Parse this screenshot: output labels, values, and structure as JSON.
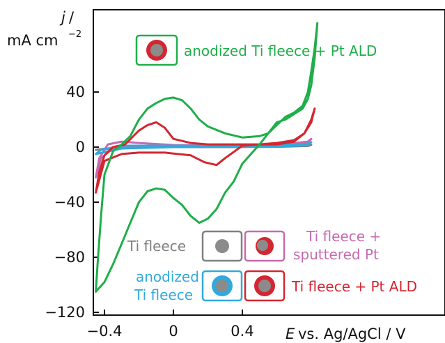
{
  "colors": {
    "ti_fleece": "#808080",
    "sputtered": "#c66aaf",
    "anodized": "#31a9dd",
    "pt_ald_red": "#d42630",
    "anodized_pt_green": "#1fae4a",
    "axis": "#111111"
  },
  "chart_data": {
    "type": "line",
    "title": "",
    "xlabel_italic": "E",
    "xlabel_rest": "vs. Ag/AgCl  /  V",
    "ylabel_italic": "j",
    "ylabel_slash": " /",
    "ylabel_unit_main": "mA cm",
    "ylabel_unit_exp": "−2",
    "xlim": [
      -0.5,
      0.85
    ],
    "ylim": [
      -120,
      85
    ],
    "xticks": [
      -0.4,
      0,
      0.4
    ],
    "xtick_labels": [
      "−0.4",
      "0",
      "0.4"
    ],
    "yticks": [
      -120,
      -80,
      -40,
      0,
      40
    ],
    "ytick_labels": [
      "−120",
      "−80",
      "−40",
      "0",
      "40"
    ],
    "grid": false,
    "series": [
      {
        "name": "Ti fleece",
        "color_key": "ti_fleece",
        "points": [
          [
            -0.45,
            -2
          ],
          [
            -0.4,
            -1.2
          ],
          [
            -0.3,
            -0.5
          ],
          [
            0,
            0
          ],
          [
            0.4,
            0.3
          ],
          [
            0.6,
            0.6
          ],
          [
            0.78,
            1.2
          ],
          [
            0.8,
            1.6
          ],
          [
            0.78,
            0.8
          ],
          [
            0.6,
            0.2
          ],
          [
            0.3,
            0
          ],
          [
            0,
            0
          ],
          [
            -0.3,
            -0.6
          ],
          [
            -0.45,
            -2
          ]
        ]
      },
      {
        "name": "Ti fleece + sputtered Pt",
        "color_key": "sputtered",
        "points": [
          [
            -0.45,
            -22
          ],
          [
            -0.43,
            -8
          ],
          [
            -0.38,
            2
          ],
          [
            -0.3,
            4
          ],
          [
            -0.2,
            3
          ],
          [
            0,
            1.5
          ],
          [
            0.3,
            1
          ],
          [
            0.6,
            1.5
          ],
          [
            0.78,
            4
          ],
          [
            0.8,
            6
          ],
          [
            0.78,
            3
          ],
          [
            0.6,
            0.5
          ],
          [
            0.3,
            0.5
          ],
          [
            0,
            0.5
          ],
          [
            -0.2,
            0
          ],
          [
            -0.35,
            -1
          ],
          [
            -0.42,
            -8
          ],
          [
            -0.45,
            -22
          ]
        ]
      },
      {
        "name": "anodized Ti fleece",
        "color_key": "anodized",
        "points": [
          [
            -0.45,
            -5
          ],
          [
            -0.42,
            -2
          ],
          [
            -0.3,
            1
          ],
          [
            0,
            1
          ],
          [
            0.4,
            1
          ],
          [
            0.6,
            1.2
          ],
          [
            0.78,
            2.5
          ],
          [
            0.8,
            3.5
          ],
          [
            0.78,
            1.5
          ],
          [
            0.6,
            0.3
          ],
          [
            0.3,
            0.3
          ],
          [
            0,
            0
          ],
          [
            -0.3,
            -1
          ],
          [
            -0.45,
            -5
          ]
        ]
      },
      {
        "name": "Ti fleece + Pt ALD",
        "color_key": "pt_ald_red",
        "points": [
          [
            -0.45,
            -33
          ],
          [
            -0.43,
            -18
          ],
          [
            -0.4,
            -6
          ],
          [
            -0.35,
            0
          ],
          [
            -0.28,
            2
          ],
          [
            -0.2,
            12
          ],
          [
            -0.15,
            16
          ],
          [
            -0.1,
            18
          ],
          [
            -0.05,
            14
          ],
          [
            0,
            6
          ],
          [
            0.1,
            3
          ],
          [
            0.2,
            2
          ],
          [
            0.4,
            2
          ],
          [
            0.6,
            2
          ],
          [
            0.7,
            4
          ],
          [
            0.76,
            10
          ],
          [
            0.8,
            18
          ],
          [
            0.82,
            28
          ],
          [
            0.8,
            20
          ],
          [
            0.76,
            10
          ],
          [
            0.7,
            5
          ],
          [
            0.6,
            3
          ],
          [
            0.4,
            1
          ],
          [
            0.3,
            -8
          ],
          [
            0.25,
            -13
          ],
          [
            0.18,
            -11
          ],
          [
            0.1,
            -6
          ],
          [
            -0.05,
            -4
          ],
          [
            -0.2,
            -4
          ],
          [
            -0.3,
            -5
          ],
          [
            -0.4,
            -10
          ],
          [
            -0.45,
            -33
          ]
        ]
      },
      {
        "name": "anodized Ti fleece + Pt ALD",
        "color_key": "anodized_pt_green",
        "points": [
          [
            -0.45,
            -105
          ],
          [
            -0.44,
            -85
          ],
          [
            -0.42,
            -50
          ],
          [
            -0.4,
            -20
          ],
          [
            -0.35,
            -3
          ],
          [
            -0.3,
            2
          ],
          [
            -0.25,
            8
          ],
          [
            -0.2,
            20
          ],
          [
            -0.15,
            28
          ],
          [
            -0.1,
            32
          ],
          [
            -0.05,
            35
          ],
          [
            0,
            36
          ],
          [
            0.05,
            34
          ],
          [
            0.1,
            28
          ],
          [
            0.15,
            20
          ],
          [
            0.2,
            15
          ],
          [
            0.3,
            10
          ],
          [
            0.4,
            7
          ],
          [
            0.5,
            8
          ],
          [
            0.55,
            10
          ],
          [
            0.6,
            16
          ],
          [
            0.65,
            22
          ],
          [
            0.7,
            25
          ],
          [
            0.75,
            30
          ],
          [
            0.78,
            40
          ],
          [
            0.8,
            55
          ],
          [
            0.82,
            72
          ],
          [
            0.835,
            90
          ],
          [
            0.82,
            65
          ],
          [
            0.8,
            45
          ],
          [
            0.78,
            35
          ],
          [
            0.75,
            28
          ],
          [
            0.7,
            24
          ],
          [
            0.65,
            20
          ],
          [
            0.6,
            18
          ],
          [
            0.55,
            10
          ],
          [
            0.5,
            2
          ],
          [
            0.45,
            -5
          ],
          [
            0.4,
            -12
          ],
          [
            0.35,
            -25
          ],
          [
            0.3,
            -33
          ],
          [
            0.25,
            -45
          ],
          [
            0.2,
            -52
          ],
          [
            0.15,
            -55
          ],
          [
            0.1,
            -50
          ],
          [
            0.05,
            -42
          ],
          [
            0,
            -37
          ],
          [
            -0.05,
            -31
          ],
          [
            -0.1,
            -30
          ],
          [
            -0.15,
            -32
          ],
          [
            -0.2,
            -40
          ],
          [
            -0.25,
            -55
          ],
          [
            -0.3,
            -70
          ],
          [
            -0.35,
            -85
          ],
          [
            -0.4,
            -98
          ],
          [
            -0.45,
            -105
          ]
        ]
      }
    ],
    "annotations": {
      "ald_green_label": "anodized Ti fleece + Pt ALD",
      "ti_fleece_label": "Ti fleece",
      "sputtered_label_line1": "Ti fleece +",
      "sputtered_label_line2": "sputtered Pt",
      "anodized_label_line1": "anodized",
      "anodized_label_line2": "Ti fleece",
      "ald_red_label": "Ti fleece + Pt ALD"
    }
  }
}
